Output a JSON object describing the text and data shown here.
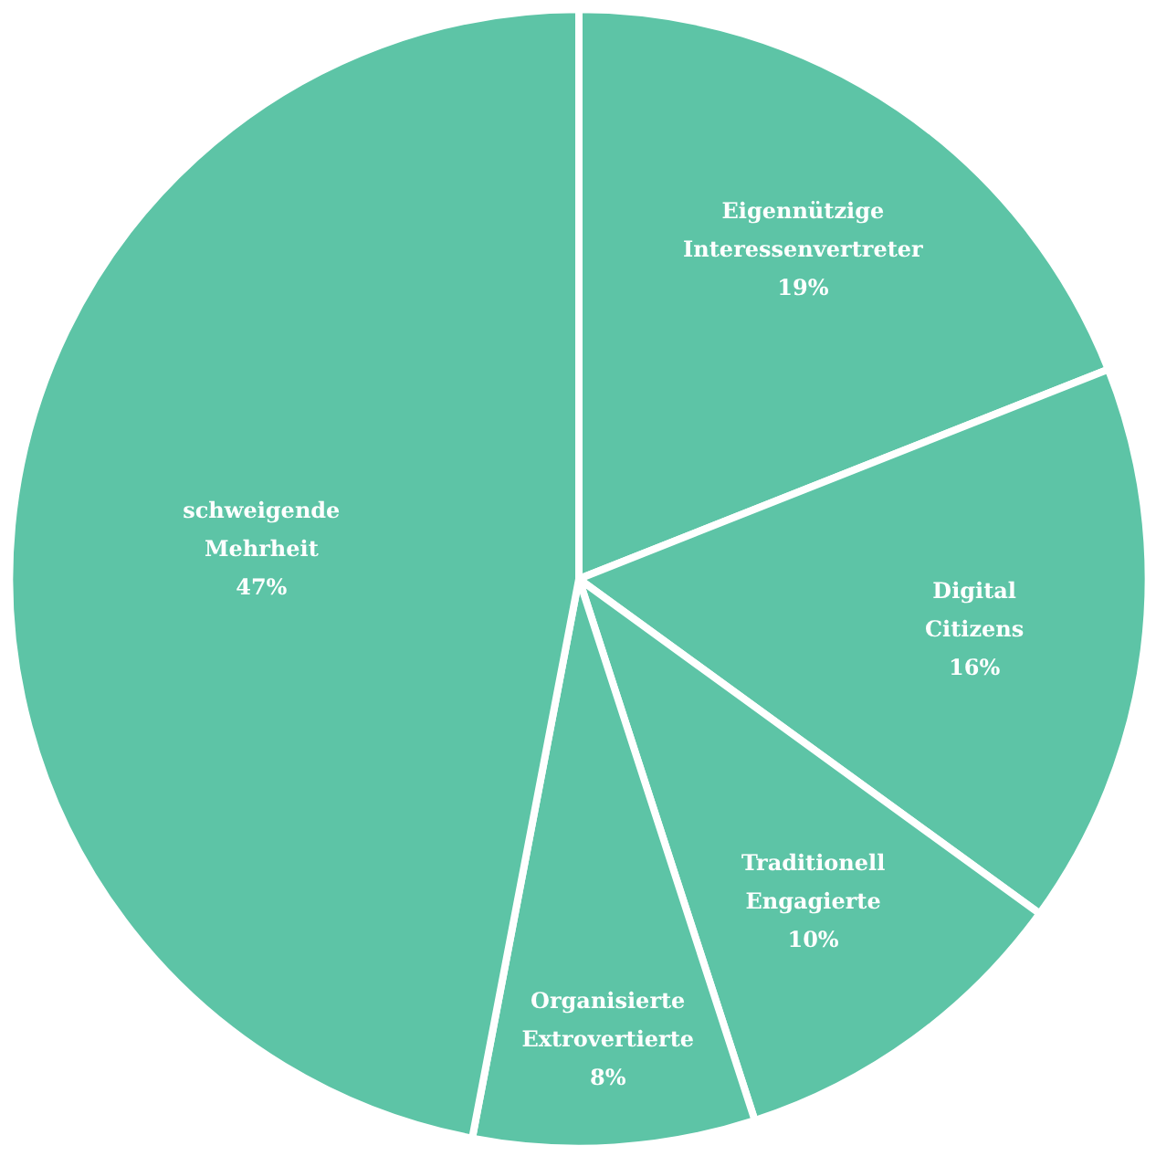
{
  "chart_data": {
    "type": "pie",
    "categories": [
      "Eigennützige Interessenvertreter",
      "Digital Citizens",
      "Traditionell Engagierte",
      "Organisierte Extrovertierte",
      "schweigende Mehrheit"
    ],
    "values": [
      19,
      16,
      10,
      8,
      47
    ],
    "colors": [
      "#5dc4a6",
      "#5dc4a6",
      "#5dc4a6",
      "#5dc4a6",
      "#5dc4a6"
    ],
    "value_labels": [
      "19%",
      "16%",
      "10%",
      "8%",
      "47%"
    ]
  }
}
